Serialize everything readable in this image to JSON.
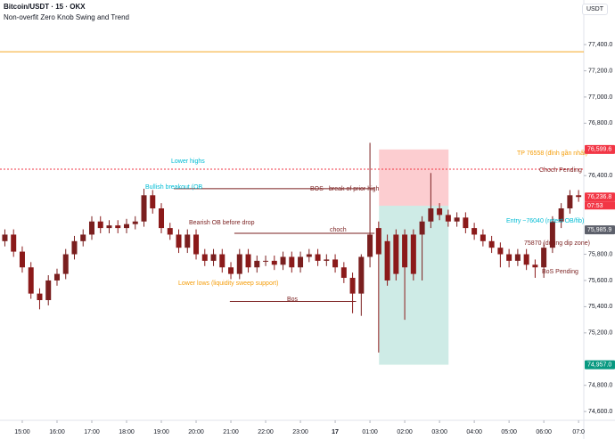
{
  "header": {
    "title": "Bitcoin/USDT · 15 · OKX",
    "indicator": "Non-overfit Zero Knob Swing and Trend",
    "currency": "USDT"
  },
  "chart_data": {
    "type": "candlestick",
    "x": [
      14.5,
      14.75,
      15,
      15.25,
      15.5,
      15.75,
      16,
      16.25,
      16.5,
      16.75,
      17,
      17.25,
      17.5,
      17.75,
      18,
      18.25,
      18.5,
      18.75,
      19,
      19.25,
      19.5,
      19.75,
      20,
      20.25,
      20.5,
      20.75,
      21,
      21.25,
      21.5,
      21.75,
      22,
      22.25,
      22.5,
      22.75,
      23,
      23.25,
      23.5,
      23.75,
      24,
      24.25,
      24.5,
      24.75,
      25,
      25.25,
      25.5,
      25.75,
      26,
      26.25,
      26.5,
      26.75,
      27,
      27.25,
      27.5,
      27.75,
      28,
      28.25,
      28.5,
      28.75,
      29,
      29.25,
      29.5,
      29.75,
      30,
      30.25,
      30.5,
      30.75,
      31
    ],
    "open": [
      75900,
      75950,
      75820,
      75700,
      75500,
      75450,
      75600,
      75650,
      75800,
      75900,
      75950,
      76050,
      76000,
      76020,
      76000,
      76030,
      76050,
      76250,
      76150,
      76000,
      75950,
      75850,
      75950,
      75800,
      75750,
      75800,
      75700,
      75650,
      75800,
      75700,
      75750,
      75750,
      75720,
      75780,
      75700,
      75780,
      75800,
      75750,
      75760,
      75700,
      75620,
      75500,
      75780,
      76000,
      75900,
      75950,
      75950,
      75950,
      75950,
      76050,
      76150,
      76100,
      76050,
      76080,
      76000,
      75950,
      75900,
      75850,
      75800,
      75750,
      75800,
      75720,
      75700,
      75850,
      76050,
      76150,
      76250
    ],
    "high": [
      75990,
      75990,
      75860,
      75740,
      75540,
      75640,
      75690,
      75840,
      75940,
      75990,
      76090,
      76090,
      76060,
      76060,
      76070,
      76090,
      76300,
      76290,
      76190,
      76040,
      75990,
      75990,
      75990,
      75840,
      75840,
      75840,
      75740,
      75840,
      75840,
      75790,
      75790,
      75790,
      75820,
      75820,
      75820,
      75840,
      75840,
      75800,
      75800,
      75740,
      75660,
      75800,
      76650,
      76050,
      75950,
      75990,
      75990,
      75990,
      76090,
      76420,
      76190,
      76140,
      76120,
      76120,
      76040,
      75990,
      75940,
      75890,
      75840,
      75840,
      75840,
      75760,
      75890,
      76090,
      76190,
      76290,
      76290
    ],
    "low": [
      75860,
      75780,
      75660,
      75460,
      75380,
      75410,
      75560,
      75610,
      75760,
      75860,
      75910,
      75960,
      75960,
      75960,
      75960,
      75990,
      76010,
      76110,
      75960,
      75910,
      75810,
      75810,
      75760,
      75710,
      75710,
      75660,
      75610,
      75610,
      75660,
      75660,
      75710,
      75680,
      75680,
      75660,
      75660,
      75740,
      75710,
      75710,
      75660,
      75580,
      75350,
      75330,
      75700,
      75050,
      75560,
      75600,
      75300,
      75600,
      75600,
      76000,
      76060,
      76010,
      76010,
      75960,
      75910,
      75860,
      75810,
      75700,
      75700,
      75710,
      75680,
      75620,
      75620,
      75810,
      76000,
      76110,
      76200
    ],
    "close": [
      75950,
      75820,
      75700,
      75500,
      75450,
      75600,
      75650,
      75800,
      75900,
      75950,
      76050,
      76000,
      76020,
      76000,
      76030,
      76050,
      76250,
      76150,
      76000,
      75950,
      75850,
      75950,
      75800,
      75750,
      75800,
      75700,
      75650,
      75800,
      75700,
      75750,
      75750,
      75720,
      75780,
      75700,
      75780,
      75800,
      75750,
      75760,
      75700,
      75620,
      75500,
      75780,
      75950,
      75800,
      75600,
      75650,
      75700,
      75650,
      76050,
      76150,
      76100,
      76050,
      76080,
      76000,
      75950,
      75900,
      75850,
      75800,
      75750,
      75800,
      75720,
      75700,
      75850,
      76050,
      76150,
      76250,
      76236.8
    ],
    "up_color": "#7a1f1f",
    "down_color": "#8b1a1a",
    "xlim": [
      14.36,
      31.15
    ],
    "ylim": [
      74533,
      77740
    ],
    "xticks": [
      {
        "value": 15,
        "label": "15:00"
      },
      {
        "value": 16,
        "label": "16:00"
      },
      {
        "value": 17,
        "label": "17:00"
      },
      {
        "value": 18,
        "label": "18:00"
      },
      {
        "value": 19,
        "label": "19:00"
      },
      {
        "value": 20,
        "label": "20:00"
      },
      {
        "value": 21,
        "label": "21:00"
      },
      {
        "value": 22,
        "label": "22:00"
      },
      {
        "value": 23,
        "label": "23:00"
      },
      {
        "value": 24,
        "label": "17"
      },
      {
        "value": 25,
        "label": "01:00"
      },
      {
        "value": 26,
        "label": "02:00"
      },
      {
        "value": 27,
        "label": "03:00"
      },
      {
        "value": 28,
        "label": "04:00"
      },
      {
        "value": 29,
        "label": "05:00"
      },
      {
        "value": 30,
        "label": "06:00"
      },
      {
        "value": 31,
        "label": "07:0"
      }
    ],
    "yticks": [
      {
        "value": 77400,
        "label": "77,400.0"
      },
      {
        "value": 77200,
        "label": "77,200.0"
      },
      {
        "value": 77000,
        "label": "77,000.0"
      },
      {
        "value": 76800,
        "label": "76,800.0"
      },
      {
        "value": 76400,
        "label": "76,400.0"
      },
      {
        "value": 75800,
        "label": "75,800.0"
      },
      {
        "value": 75600,
        "label": "75,600.0"
      },
      {
        "value": 75400,
        "label": "75,400.0"
      },
      {
        "value": 75200,
        "label": "75,200.0"
      },
      {
        "value": 74800,
        "label": "74,800.0"
      },
      {
        "value": 74600,
        "label": "74,600.0"
      }
    ],
    "price_labels": [
      {
        "value": 76599.6,
        "label": "76,599.6",
        "color": "#f23645"
      },
      {
        "value": 76236.8,
        "label": "76,236.8",
        "color": "#f23645"
      },
      {
        "value": 75985.9,
        "label": "75,985.9",
        "color": "#5d606b"
      },
      {
        "value": 74957,
        "label": "74,957.0",
        "color": "#089981"
      }
    ],
    "countdown": "07:53",
    "zones": [
      {
        "x0": 25.26,
        "x1": 27.26,
        "top": 76599.6,
        "bottom": 76170,
        "color": "rgba(242,54,69,0.25)"
      },
      {
        "x0": 25.26,
        "x1": 27.26,
        "top": 76170,
        "bottom": 74957,
        "color": "rgba(8,153,129,0.2)"
      }
    ],
    "hlines": [
      {
        "value": 77345,
        "x0": 14.36,
        "x1": 31.15,
        "color": "#f5a623",
        "dash": false
      },
      {
        "value": 76449,
        "x0": 14.36,
        "x1": 31.15,
        "color": "#f23645",
        "dash": true
      },
      {
        "value": 76300,
        "x0": 19.36,
        "x1": 25.13,
        "color": "#7a1f1f",
        "dash": false
      },
      {
        "value": 75960,
        "x0": 21.1,
        "x1": 25.13,
        "color": "#7a1f1f",
        "dash": false
      },
      {
        "value": 75440,
        "x0": 20.97,
        "x1": 24.6,
        "color": "#7a1f1f",
        "dash": false
      }
    ],
    "annotations": [
      {
        "text": "Lower highs",
        "color": "#00bcd4"
      },
      {
        "text": "Bullish breakout (OB",
        "color": "#00bcd4"
      },
      {
        "text": "Bearish OB before drop",
        "color": "#7a1f1f"
      },
      {
        "text": "Lower lows (liquidity sweep support)",
        "color": "#f59e0b"
      },
      {
        "text": "BOS - break of prior high",
        "color": "#7a1f1f"
      },
      {
        "text": "choch",
        "color": "#7a1f1f"
      },
      {
        "text": "Bos",
        "color": "#7a1f1f"
      },
      {
        "text": "TP 76558 (đỉnh gần nhất)",
        "color": "#f59e0b"
      },
      {
        "text": "Choch Pending",
        "color": "#7a1f1f"
      },
      {
        "text": "Entry ~76040 (retest OB/fib)",
        "color": "#00bcd4"
      },
      {
        "text": "75870 (during dip zone)",
        "color": "#7a1f1f"
      },
      {
        "text": "BoS Pending",
        "color": "#7a1f1f"
      }
    ]
  }
}
